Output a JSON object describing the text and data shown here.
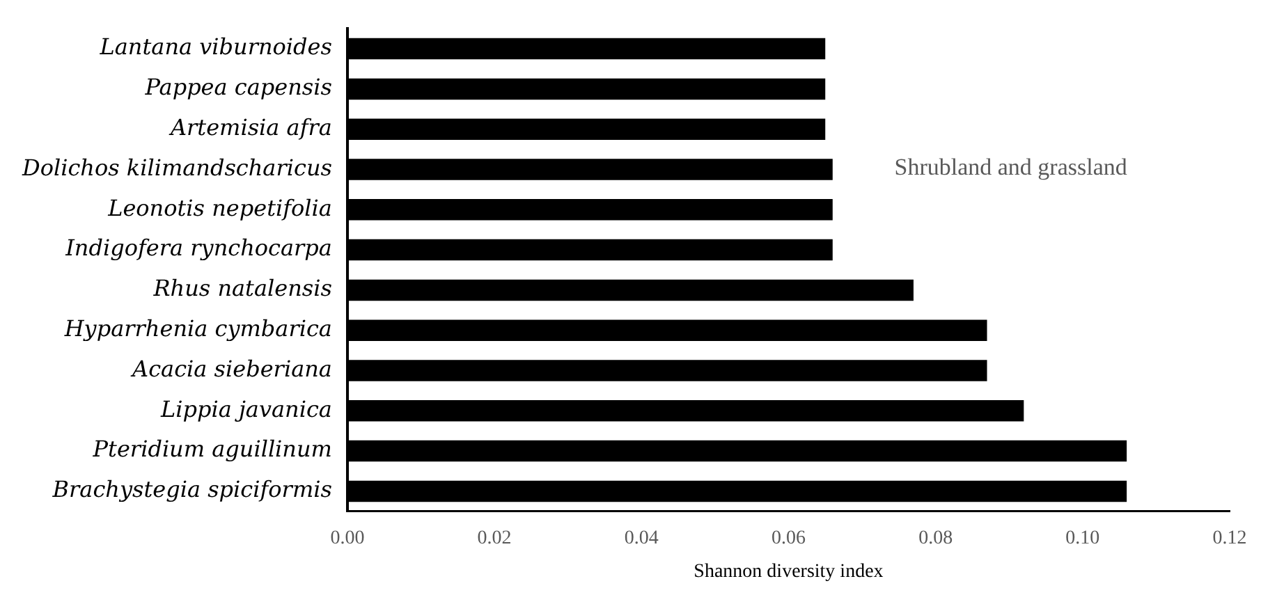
{
  "chart_data": {
    "type": "bar",
    "orientation": "horizontal",
    "xlabel": "Shannon diversity index",
    "categories": [
      "Lantana viburnoides",
      "Pappea capensis",
      "Artemisia afra",
      "Dolichos kilimandscharicus",
      "Leonotis nepetifolia",
      "Indigofera rynchocarpa",
      "Rhus natalensis",
      "Hyparrhenia cymbarica",
      "Acacia sieberiana",
      "Lippia javanica",
      "Pteridium aguillinum",
      "Brachystegia spiciformis"
    ],
    "values": [
      0.065,
      0.065,
      0.065,
      0.066,
      0.066,
      0.066,
      0.077,
      0.087,
      0.087,
      0.092,
      0.106,
      0.106
    ],
    "color": "#000000",
    "xlim": [
      0,
      0.12
    ],
    "xticks": [
      {
        "value": 0,
        "label": "0.00"
      },
      {
        "value": 0.02,
        "label": "0.02"
      },
      {
        "value": 0.04,
        "label": "0.04"
      },
      {
        "value": 0.06,
        "label": "0.06"
      },
      {
        "value": 0.08,
        "label": "0.08"
      },
      {
        "value": 0.1,
        "label": "0.10"
      },
      {
        "value": 0.12,
        "label": "0.12"
      }
    ],
    "grid": false,
    "legend": false,
    "annotations": [
      "Shrubland and grassland"
    ]
  }
}
